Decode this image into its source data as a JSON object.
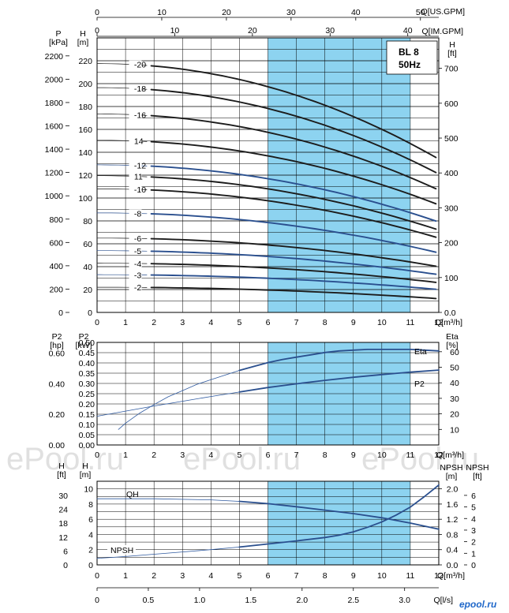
{
  "page": {
    "watermark": "ePool.ru",
    "logo_text": "epool.ru"
  },
  "colors": {
    "band": "#8dd3f0",
    "dark": "#1c1c1c",
    "blue": "#2a4f8e",
    "thin": "#2f5aa0",
    "grid": "#000000"
  },
  "chart_data": [
    {
      "type": "line",
      "title": "BL 8",
      "subtitle": "50Hz",
      "xlabel": "Q[m³/h]",
      "x_range": [
        0,
        12
      ],
      "x_ticks": [
        "0",
        "1",
        "2",
        "3",
        "4",
        "5",
        "6",
        "7",
        "8",
        "9",
        "10",
        "11",
        "12"
      ],
      "top_axis_us": {
        "label": "Q[US.GPM]",
        "ticks": [
          "0",
          "10",
          "20",
          "30",
          "40",
          "50"
        ],
        "values": [
          0,
          10,
          20,
          30,
          40,
          50
        ]
      },
      "top_axis_im": {
        "label": "Q[IM.GPM]",
        "ticks": [
          "0",
          "10",
          "20",
          "30",
          "40"
        ],
        "values": [
          0,
          10,
          20,
          30,
          40
        ]
      },
      "left_axis_p": {
        "label": "P",
        "unit": "[kPa]",
        "ticks": [
          "0",
          "200",
          "400",
          "600",
          "800",
          "1000",
          "1200",
          "1400",
          "1600",
          "1800",
          "2000",
          "2200"
        ]
      },
      "left_axis_h": {
        "label": "H",
        "unit": "[m]",
        "ticks": [
          "0",
          "20",
          "40",
          "60",
          "80",
          "100",
          "120",
          "140",
          "160",
          "180",
          "200",
          "220"
        ]
      },
      "right_axis_h": {
        "label": "H",
        "unit": "[ft]",
        "ticks": [
          "0.0",
          "100",
          "200",
          "300",
          "400",
          "500",
          "600",
          "700"
        ]
      },
      "ylim": [
        0,
        240
      ],
      "recommended_range": [
        6,
        11
      ],
      "series": [
        {
          "name": "-20",
          "h0": 217.5,
          "h12": 134,
          "style": "dark"
        },
        {
          "name": "-18",
          "h0": 196.5,
          "h12": 121,
          "style": "dark"
        },
        {
          "name": "-16",
          "h0": 173.5,
          "h12": 107,
          "style": "dark"
        },
        {
          "name": "14",
          "h0": 150.5,
          "h12": 94,
          "style": "dark"
        },
        {
          "name": "-12",
          "h0": 129,
          "h12": 79,
          "style": "blue"
        },
        {
          "name": "11",
          "h0": 119.5,
          "h12": 72,
          "style": "dark"
        },
        {
          "name": "-10",
          "h0": 108,
          "h12": 65,
          "style": "dark"
        },
        {
          "name": "-8",
          "h0": 87,
          "h12": 52,
          "style": "blue"
        },
        {
          "name": "-6",
          "h0": 65,
          "h12": 40,
          "style": "dark"
        },
        {
          "name": "-5",
          "h0": 54,
          "h12": 33,
          "style": "blue"
        },
        {
          "name": "-4",
          "h0": 43,
          "h12": 26,
          "style": "dark"
        },
        {
          "name": "-3",
          "h0": 33,
          "h12": 20,
          "style": "blue"
        },
        {
          "name": "-2",
          "h0": 22,
          "h12": 12,
          "style": "dark"
        }
      ]
    },
    {
      "type": "line",
      "xlabel": "Q[m³/h]",
      "x_range": [
        0,
        12
      ],
      "x_ticks": [
        "0",
        "1",
        "2",
        "3",
        "4",
        "5",
        "6",
        "7",
        "8",
        "9",
        "10",
        "11",
        "12"
      ],
      "left_axis_hp": {
        "label": "P2",
        "unit": "[hp]",
        "ticks": [
          "0.00",
          "0.20",
          "0.40",
          "0.60"
        ]
      },
      "left_axis_kw": {
        "label": "P2",
        "unit": "[kW]",
        "ticks": [
          "0.00",
          "0.05",
          "0.10",
          "0.15",
          "0.20",
          "0.25",
          "0.30",
          "0.35",
          "0.40",
          "0.45",
          "0.50"
        ]
      },
      "right_axis_eta": {
        "label": "Eta",
        "unit": "[%]",
        "ticks": [
          "10",
          "20",
          "30",
          "40",
          "50",
          "60"
        ]
      },
      "recommended_range": [
        6,
        11
      ],
      "series": [
        {
          "name": "Eta",
          "x": [
            0.75,
            1,
            1.5,
            2,
            2.5,
            3,
            3.5,
            4,
            4.5,
            5,
            5.5,
            6,
            6.5,
            7,
            7.5,
            8,
            8.5,
            9,
            9.5,
            10,
            10.5,
            11,
            11.5,
            12
          ],
          "y": [
            10,
            14,
            20.5,
            26,
            31,
            35,
            39,
            42,
            45,
            48,
            50.5,
            53,
            55,
            56.5,
            58,
            59.5,
            60.5,
            61,
            61.5,
            61.5,
            61.5,
            61.5,
            61,
            60.5
          ]
        },
        {
          "name": "P2",
          "x": [
            0,
            1,
            2,
            3,
            4,
            5,
            6,
            7,
            8,
            9,
            10,
            11,
            12
          ],
          "y": [
            0.14,
            0.165,
            0.19,
            0.213,
            0.236,
            0.258,
            0.28,
            0.298,
            0.315,
            0.33,
            0.343,
            0.355,
            0.365
          ]
        }
      ]
    },
    {
      "type": "line",
      "xlabel": "Q[m³/h]",
      "x_range": [
        0,
        12
      ],
      "x_ticks": [
        "0",
        "1",
        "2",
        "3",
        "4",
        "5",
        "6",
        "7",
        "8",
        "9",
        "10",
        "11",
        "12"
      ],
      "bottom_axis_ls": {
        "label": "Q[l/s]",
        "ticks": [
          "0",
          "0.5",
          "1.0",
          "1.5",
          "2.0",
          "2.5",
          "3.0"
        ],
        "values": [
          0,
          0.5,
          1.0,
          1.5,
          2.0,
          2.5,
          3.0
        ]
      },
      "left_axis_ft": {
        "label": "H",
        "unit": "[ft]",
        "ticks": [
          "0",
          "6",
          "12",
          "18",
          "24",
          "30"
        ]
      },
      "left_axis_m": {
        "label": "H",
        "unit": "[m]",
        "ticks": [
          "0",
          "2",
          "4",
          "6",
          "8",
          "10"
        ]
      },
      "right_axis_npsh_m": {
        "label": "NPSH",
        "unit": "[m]",
        "ticks": [
          "0.0",
          "0.4",
          "0.8",
          "1.2",
          "1.6",
          "2.0"
        ]
      },
      "right_axis_npsh_ft": {
        "label": "NPSH",
        "unit": "[ft]",
        "ticks": [
          "0",
          "1",
          "2",
          "3",
          "4",
          "5",
          "6"
        ]
      },
      "recommended_range": [
        6,
        11
      ],
      "series": [
        {
          "name": "QH",
          "x": [
            0,
            2,
            4,
            5,
            6,
            7,
            8,
            9,
            10,
            11,
            12
          ],
          "y": [
            8.7,
            8.7,
            8.55,
            8.35,
            8.05,
            7.65,
            7.2,
            6.75,
            6.2,
            5.5,
            4.7
          ]
        },
        {
          "name": "NPSH",
          "x": [
            0,
            1,
            2,
            3,
            4,
            5,
            6,
            7,
            8,
            8.5,
            9,
            9.5,
            10,
            10.5,
            11,
            11.5,
            12
          ],
          "y": [
            0.17,
            0.22,
            0.28,
            0.34,
            0.4,
            0.47,
            0.55,
            0.63,
            0.72,
            0.78,
            0.87,
            0.99,
            1.13,
            1.31,
            1.52,
            1.8,
            2.1
          ]
        }
      ]
    }
  ]
}
